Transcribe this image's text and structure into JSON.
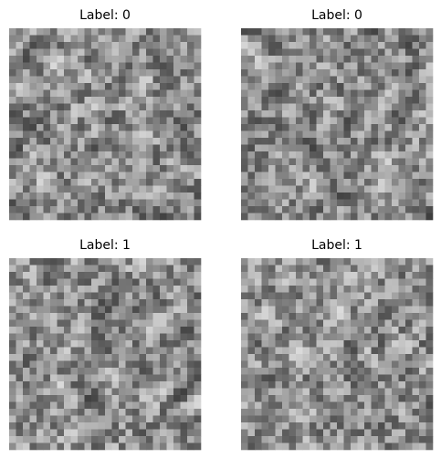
{
  "panels": [
    {
      "title": "Label: 0"
    },
    {
      "title": "Label: 0"
    },
    {
      "title": "Label: 1"
    },
    {
      "title": "Label: 1"
    }
  ]
}
